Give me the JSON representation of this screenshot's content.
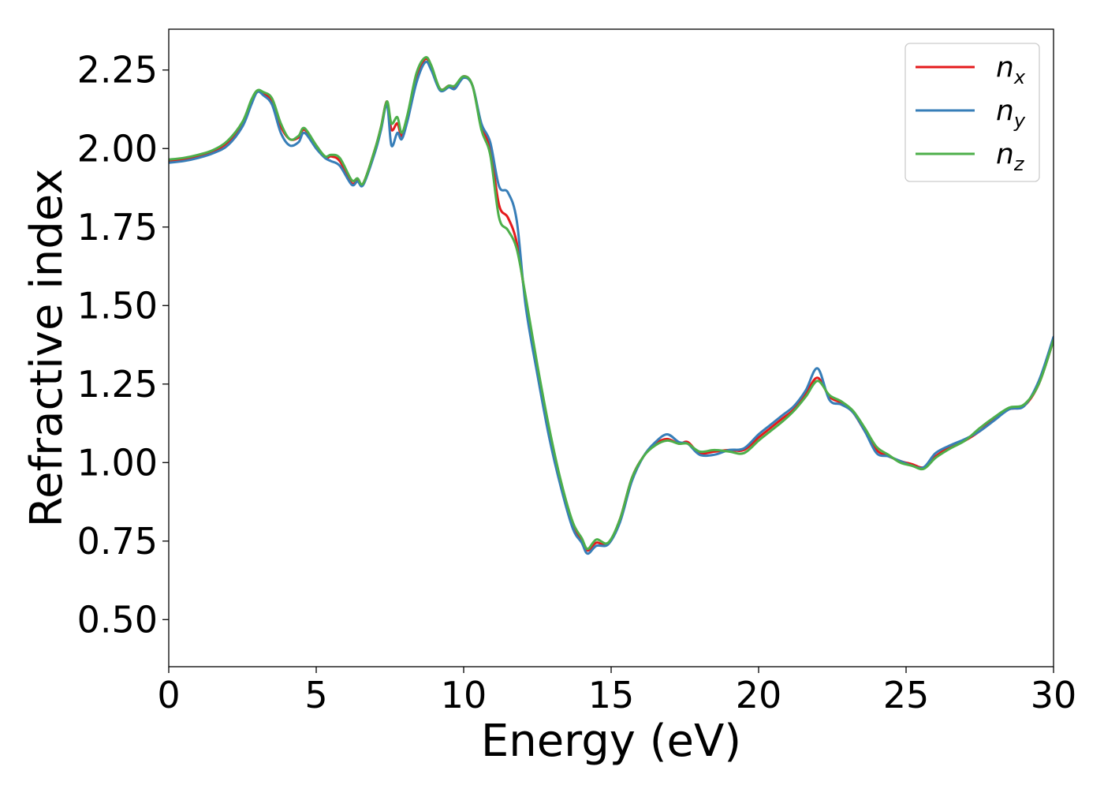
{
  "chart_data": {
    "type": "line",
    "title": "",
    "xlabel": "Energy (eV)",
    "ylabel": "Refractive index",
    "xlim": [
      0,
      30
    ],
    "ylim": [
      0.35,
      2.38
    ],
    "xticks": [
      0,
      5,
      10,
      15,
      20,
      25,
      30
    ],
    "xtick_labels": [
      "0",
      "5",
      "10",
      "15",
      "20",
      "25",
      "30"
    ],
    "yticks": [
      0.5,
      0.75,
      1.0,
      1.25,
      1.5,
      1.75,
      2.0,
      2.25
    ],
    "ytick_labels": [
      "0.50",
      "0.75",
      "1.00",
      "1.25",
      "1.50",
      "1.75",
      "2.00",
      "2.25"
    ],
    "grid": false,
    "legend_position": "top-right",
    "series": [
      {
        "name": "n",
        "subscript": "x",
        "color": "#e41a1c",
        "points": [
          [
            0,
            1.96
          ],
          [
            0.5,
            1.965
          ],
          [
            1,
            1.975
          ],
          [
            1.5,
            1.99
          ],
          [
            2,
            2.02
          ],
          [
            2.5,
            2.08
          ],
          [
            2.8,
            2.15
          ],
          [
            3.0,
            2.18
          ],
          [
            3.2,
            2.175
          ],
          [
            3.5,
            2.15
          ],
          [
            3.8,
            2.07
          ],
          [
            4.1,
            2.03
          ],
          [
            4.4,
            2.035
          ],
          [
            4.6,
            2.06
          ],
          [
            5.0,
            2.01
          ],
          [
            5.3,
            1.97
          ],
          [
            5.5,
            1.975
          ],
          [
            5.8,
            1.96
          ],
          [
            6.2,
            1.89
          ],
          [
            6.4,
            1.9
          ],
          [
            6.6,
            1.89
          ],
          [
            7.0,
            2.0
          ],
          [
            7.2,
            2.07
          ],
          [
            7.4,
            2.15
          ],
          [
            7.55,
            2.06
          ],
          [
            7.75,
            2.08
          ],
          [
            7.9,
            2.04
          ],
          [
            8.1,
            2.1
          ],
          [
            8.4,
            2.23
          ],
          [
            8.7,
            2.285
          ],
          [
            8.9,
            2.26
          ],
          [
            9.2,
            2.19
          ],
          [
            9.5,
            2.2
          ],
          [
            9.7,
            2.195
          ],
          [
            10.0,
            2.23
          ],
          [
            10.3,
            2.2
          ],
          [
            10.6,
            2.07
          ],
          [
            10.9,
            2.0
          ],
          [
            11.2,
            1.82
          ],
          [
            11.5,
            1.78
          ],
          [
            11.8,
            1.7
          ],
          [
            12.1,
            1.52
          ],
          [
            12.5,
            1.3
          ],
          [
            12.9,
            1.1
          ],
          [
            13.3,
            0.93
          ],
          [
            13.7,
            0.8
          ],
          [
            14.0,
            0.755
          ],
          [
            14.2,
            0.72
          ],
          [
            14.5,
            0.745
          ],
          [
            14.9,
            0.74
          ],
          [
            15.3,
            0.82
          ],
          [
            15.7,
            0.95
          ],
          [
            16.1,
            1.02
          ],
          [
            16.5,
            1.06
          ],
          [
            16.9,
            1.075
          ],
          [
            17.3,
            1.06
          ],
          [
            17.6,
            1.065
          ],
          [
            18.0,
            1.03
          ],
          [
            18.5,
            1.035
          ],
          [
            19.0,
            1.04
          ],
          [
            19.5,
            1.04
          ],
          [
            20.0,
            1.08
          ],
          [
            20.4,
            1.11
          ],
          [
            20.8,
            1.14
          ],
          [
            21.2,
            1.17
          ],
          [
            21.6,
            1.22
          ],
          [
            22.0,
            1.27
          ],
          [
            22.4,
            1.21
          ],
          [
            22.8,
            1.19
          ],
          [
            23.2,
            1.16
          ],
          [
            23.6,
            1.1
          ],
          [
            24.0,
            1.04
          ],
          [
            24.4,
            1.02
          ],
          [
            24.8,
            1.005
          ],
          [
            25.2,
            0.995
          ],
          [
            25.6,
            0.985
          ],
          [
            26.0,
            1.02
          ],
          [
            26.5,
            1.05
          ],
          [
            27.0,
            1.07
          ],
          [
            27.5,
            1.1
          ],
          [
            28.0,
            1.14
          ],
          [
            28.5,
            1.17
          ],
          [
            29.0,
            1.18
          ],
          [
            29.5,
            1.25
          ],
          [
            30.0,
            1.39
          ]
        ]
      },
      {
        "name": "n",
        "subscript": "y",
        "color": "#377eb8",
        "points": [
          [
            0,
            1.955
          ],
          [
            0.5,
            1.96
          ],
          [
            1,
            1.97
          ],
          [
            1.5,
            1.985
          ],
          [
            2,
            2.01
          ],
          [
            2.5,
            2.07
          ],
          [
            2.8,
            2.14
          ],
          [
            3.0,
            2.18
          ],
          [
            3.2,
            2.17
          ],
          [
            3.5,
            2.14
          ],
          [
            3.8,
            2.05
          ],
          [
            4.1,
            2.01
          ],
          [
            4.4,
            2.02
          ],
          [
            4.6,
            2.05
          ],
          [
            5.0,
            2.0
          ],
          [
            5.3,
            1.97
          ],
          [
            5.5,
            1.96
          ],
          [
            5.8,
            1.945
          ],
          [
            6.2,
            1.885
          ],
          [
            6.4,
            1.895
          ],
          [
            6.6,
            1.885
          ],
          [
            7.0,
            1.99
          ],
          [
            7.2,
            2.06
          ],
          [
            7.4,
            2.14
          ],
          [
            7.55,
            2.01
          ],
          [
            7.75,
            2.05
          ],
          [
            7.9,
            2.03
          ],
          [
            8.1,
            2.09
          ],
          [
            8.4,
            2.21
          ],
          [
            8.7,
            2.275
          ],
          [
            8.9,
            2.25
          ],
          [
            9.2,
            2.185
          ],
          [
            9.5,
            2.195
          ],
          [
            9.7,
            2.19
          ],
          [
            10.0,
            2.225
          ],
          [
            10.3,
            2.2
          ],
          [
            10.6,
            2.08
          ],
          [
            10.9,
            2.02
          ],
          [
            11.2,
            1.88
          ],
          [
            11.5,
            1.86
          ],
          [
            11.8,
            1.77
          ],
          [
            12.1,
            1.5
          ],
          [
            12.5,
            1.28
          ],
          [
            12.9,
            1.08
          ],
          [
            13.3,
            0.92
          ],
          [
            13.7,
            0.79
          ],
          [
            14.0,
            0.745
          ],
          [
            14.2,
            0.71
          ],
          [
            14.5,
            0.735
          ],
          [
            14.9,
            0.74
          ],
          [
            15.3,
            0.81
          ],
          [
            15.7,
            0.94
          ],
          [
            16.1,
            1.02
          ],
          [
            16.5,
            1.065
          ],
          [
            16.9,
            1.09
          ],
          [
            17.3,
            1.065
          ],
          [
            17.6,
            1.06
          ],
          [
            18.0,
            1.025
          ],
          [
            18.5,
            1.025
          ],
          [
            19.0,
            1.04
          ],
          [
            19.5,
            1.045
          ],
          [
            20.0,
            1.09
          ],
          [
            20.4,
            1.12
          ],
          [
            20.8,
            1.15
          ],
          [
            21.2,
            1.18
          ],
          [
            21.6,
            1.23
          ],
          [
            22.0,
            1.3
          ],
          [
            22.4,
            1.2
          ],
          [
            22.8,
            1.185
          ],
          [
            23.2,
            1.16
          ],
          [
            23.6,
            1.1
          ],
          [
            24.0,
            1.03
          ],
          [
            24.4,
            1.02
          ],
          [
            24.8,
            1.005
          ],
          [
            25.2,
            0.99
          ],
          [
            25.6,
            0.985
          ],
          [
            26.0,
            1.03
          ],
          [
            26.5,
            1.055
          ],
          [
            27.0,
            1.075
          ],
          [
            27.5,
            1.1
          ],
          [
            28.0,
            1.135
          ],
          [
            28.5,
            1.17
          ],
          [
            29.0,
            1.18
          ],
          [
            29.5,
            1.26
          ],
          [
            30.0,
            1.4
          ]
        ]
      },
      {
        "name": "n",
        "subscript": "z",
        "color": "#4daf4a",
        "points": [
          [
            0,
            1.965
          ],
          [
            0.5,
            1.97
          ],
          [
            1,
            1.98
          ],
          [
            1.5,
            1.995
          ],
          [
            2,
            2.025
          ],
          [
            2.5,
            2.085
          ],
          [
            2.8,
            2.155
          ],
          [
            3.0,
            2.185
          ],
          [
            3.2,
            2.18
          ],
          [
            3.5,
            2.16
          ],
          [
            3.8,
            2.08
          ],
          [
            4.1,
            2.03
          ],
          [
            4.4,
            2.04
          ],
          [
            4.6,
            2.065
          ],
          [
            5.0,
            2.01
          ],
          [
            5.3,
            1.975
          ],
          [
            5.5,
            1.98
          ],
          [
            5.8,
            1.97
          ],
          [
            6.2,
            1.9
          ],
          [
            6.4,
            1.905
          ],
          [
            6.6,
            1.89
          ],
          [
            7.0,
            2.0
          ],
          [
            7.2,
            2.07
          ],
          [
            7.4,
            2.15
          ],
          [
            7.55,
            2.08
          ],
          [
            7.75,
            2.1
          ],
          [
            7.9,
            2.05
          ],
          [
            8.1,
            2.11
          ],
          [
            8.4,
            2.24
          ],
          [
            8.7,
            2.29
          ],
          [
            8.9,
            2.265
          ],
          [
            9.2,
            2.19
          ],
          [
            9.5,
            2.2
          ],
          [
            9.7,
            2.2
          ],
          [
            10.0,
            2.23
          ],
          [
            10.3,
            2.2
          ],
          [
            10.6,
            2.06
          ],
          [
            10.9,
            1.98
          ],
          [
            11.2,
            1.78
          ],
          [
            11.5,
            1.74
          ],
          [
            11.8,
            1.68
          ],
          [
            12.1,
            1.53
          ],
          [
            12.5,
            1.31
          ],
          [
            12.9,
            1.11
          ],
          [
            13.3,
            0.94
          ],
          [
            13.7,
            0.81
          ],
          [
            14.0,
            0.76
          ],
          [
            14.2,
            0.725
          ],
          [
            14.5,
            0.755
          ],
          [
            14.9,
            0.745
          ],
          [
            15.3,
            0.82
          ],
          [
            15.7,
            0.95
          ],
          [
            16.1,
            1.02
          ],
          [
            16.5,
            1.055
          ],
          [
            16.9,
            1.07
          ],
          [
            17.3,
            1.06
          ],
          [
            17.6,
            1.06
          ],
          [
            18.0,
            1.035
          ],
          [
            18.5,
            1.04
          ],
          [
            19.0,
            1.035
          ],
          [
            19.5,
            1.03
          ],
          [
            20.0,
            1.07
          ],
          [
            20.4,
            1.1
          ],
          [
            20.8,
            1.13
          ],
          [
            21.2,
            1.165
          ],
          [
            21.6,
            1.21
          ],
          [
            22.0,
            1.26
          ],
          [
            22.4,
            1.215
          ],
          [
            22.8,
            1.195
          ],
          [
            23.2,
            1.165
          ],
          [
            23.6,
            1.11
          ],
          [
            24.0,
            1.05
          ],
          [
            24.4,
            1.025
          ],
          [
            24.8,
            1.0
          ],
          [
            25.2,
            0.99
          ],
          [
            25.6,
            0.98
          ],
          [
            26.0,
            1.015
          ],
          [
            26.5,
            1.045
          ],
          [
            27.0,
            1.07
          ],
          [
            27.5,
            1.11
          ],
          [
            28.0,
            1.145
          ],
          [
            28.5,
            1.175
          ],
          [
            29.0,
            1.185
          ],
          [
            29.5,
            1.25
          ],
          [
            30.0,
            1.39
          ]
        ]
      }
    ]
  }
}
